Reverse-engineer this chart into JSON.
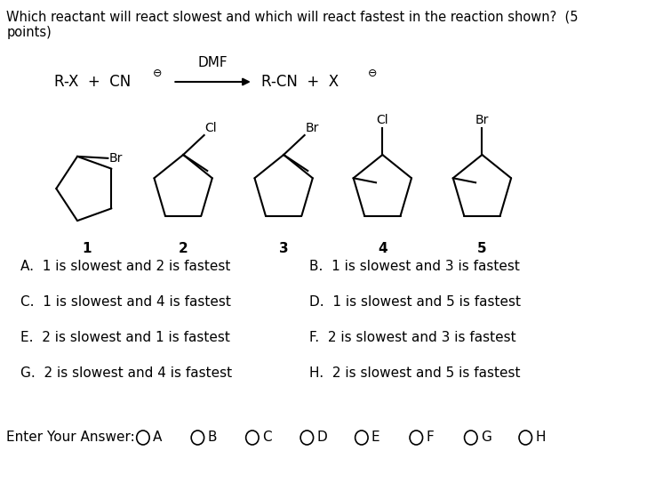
{
  "title_text": "Which reactant will react slowest and which will react fastest in the reaction shown?  (5\npoints)",
  "dmf_label": "DMF",
  "choices": [
    [
      "A.  1 is slowest and 2 is fastest",
      "B.  1 is slowest and 3 is fastest"
    ],
    [
      "C.  1 is slowest and 4 is fastest",
      "D.  1 is slowest and 5 is fastest"
    ],
    [
      "E.  2 is slowest and 1 is fastest",
      "F.  2 is slowest and 3 is fastest"
    ],
    [
      "G.  2 is slowest and 4 is fastest",
      "H.  2 is slowest and 5 is fastest"
    ]
  ],
  "answer_labels": [
    "A",
    "B",
    "C",
    "D",
    "E",
    "F",
    "G",
    "H"
  ],
  "bg_color": "#ffffff",
  "text_color": "#000000",
  "font_size_title": 10.5,
  "font_size_body": 11,
  "font_size_choices": 11,
  "font_size_small": 9,
  "compound_labels": [
    "1",
    "2",
    "3",
    "4",
    "5"
  ]
}
